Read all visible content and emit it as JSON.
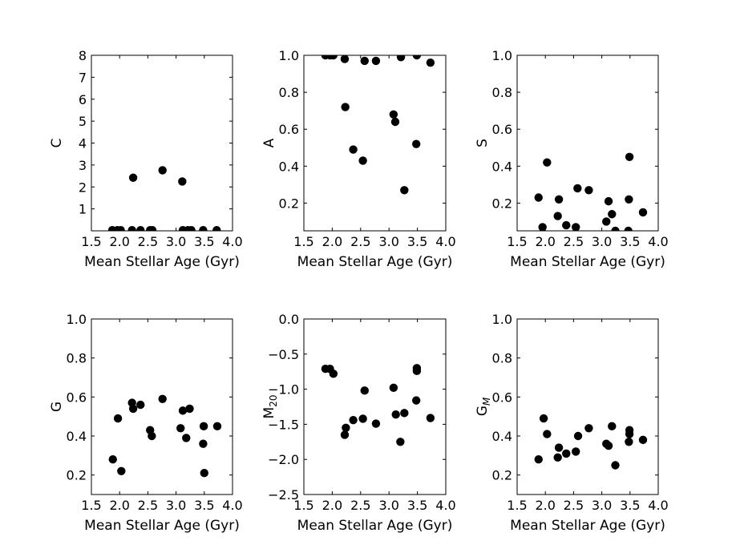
{
  "chart_data": [
    {
      "type": "scatter",
      "xlabel": "Mean Stellar Age (Gyr)",
      "ylabel": "C",
      "xlim": [
        1.5,
        4.0
      ],
      "ylim": [
        0,
        8
      ],
      "xticks": [
        1.5,
        2.0,
        2.5,
        3.0,
        3.5,
        4.0
      ],
      "xtick_labels": [
        "1.5",
        "2.0",
        "2.5",
        "3.0",
        "3.5",
        "4.0"
      ],
      "yticks": [
        1,
        2,
        3,
        4,
        5,
        6,
        7,
        8
      ],
      "ytick_labels": [
        "1",
        "2",
        "3",
        "4",
        "5",
        "6",
        "7",
        "8"
      ],
      "points": [
        [
          1.87,
          0.03
        ],
        [
          1.96,
          0.03
        ],
        [
          2.02,
          0.03
        ],
        [
          2.22,
          0.03
        ],
        [
          2.37,
          0.03
        ],
        [
          2.54,
          0.03
        ],
        [
          2.58,
          0.03
        ],
        [
          2.24,
          2.42
        ],
        [
          2.76,
          2.76
        ],
        [
          3.11,
          2.25
        ],
        [
          3.12,
          0.03
        ],
        [
          3.21,
          0.03
        ],
        [
          3.27,
          0.03
        ],
        [
          3.48,
          0.03
        ],
        [
          3.72,
          0.03
        ]
      ]
    },
    {
      "type": "scatter",
      "xlabel": "Mean Stellar Age (Gyr)",
      "ylabel": "A",
      "xlim": [
        1.5,
        4.0
      ],
      "ylim": [
        0.05,
        1.0
      ],
      "xticks": [
        1.5,
        2.0,
        2.5,
        3.0,
        3.5,
        4.0
      ],
      "xtick_labels": [
        "1.5",
        "2.0",
        "2.5",
        "3.0",
        "3.5",
        "4.0"
      ],
      "yticks": [
        0.2,
        0.4,
        0.6,
        0.8,
        1.0
      ],
      "ytick_labels": [
        "0.2",
        "0.4",
        "0.6",
        "0.8",
        "1.0"
      ],
      "points": [
        [
          1.88,
          1.0
        ],
        [
          1.96,
          1.0
        ],
        [
          2.02,
          1.0
        ],
        [
          2.22,
          0.98
        ],
        [
          2.23,
          0.72
        ],
        [
          2.37,
          0.49
        ],
        [
          2.54,
          0.43
        ],
        [
          2.57,
          0.97
        ],
        [
          2.77,
          0.97
        ],
        [
          3.08,
          0.68
        ],
        [
          3.11,
          0.64
        ],
        [
          3.21,
          0.99
        ],
        [
          3.27,
          0.27
        ],
        [
          3.48,
          0.52
        ],
        [
          3.49,
          1.0
        ],
        [
          3.73,
          0.96
        ]
      ]
    },
    {
      "type": "scatter",
      "xlabel": "Mean Stellar Age (Gyr)",
      "ylabel": "S",
      "xlim": [
        1.5,
        4.0
      ],
      "ylim": [
        0.05,
        1.0
      ],
      "xticks": [
        1.5,
        2.0,
        2.5,
        3.0,
        3.5,
        4.0
      ],
      "xtick_labels": [
        "1.5",
        "2.0",
        "2.5",
        "3.0",
        "3.5",
        "4.0"
      ],
      "yticks": [
        0.2,
        0.4,
        0.6,
        0.8,
        1.0
      ],
      "ytick_labels": [
        "0.2",
        "0.4",
        "0.6",
        "0.8",
        "1.0"
      ],
      "points": [
        [
          1.88,
          0.23
        ],
        [
          1.95,
          0.07
        ],
        [
          2.03,
          0.42
        ],
        [
          2.22,
          0.13
        ],
        [
          2.24,
          0.22
        ],
        [
          2.37,
          0.08
        ],
        [
          2.54,
          0.07
        ],
        [
          2.57,
          0.28
        ],
        [
          2.77,
          0.27
        ],
        [
          3.08,
          0.1
        ],
        [
          3.12,
          0.21
        ],
        [
          3.18,
          0.14
        ],
        [
          3.24,
          0.05
        ],
        [
          3.47,
          0.05
        ],
        [
          3.48,
          0.22
        ],
        [
          3.49,
          0.45
        ],
        [
          3.73,
          0.15
        ]
      ]
    },
    {
      "type": "scatter",
      "xlabel": "Mean Stellar Age (Gyr)",
      "ylabel": "G",
      "xlim": [
        1.5,
        4.0
      ],
      "ylim": [
        0.1,
        1.0
      ],
      "xticks": [
        1.5,
        2.0,
        2.5,
        3.0,
        3.5,
        4.0
      ],
      "xtick_labels": [
        "1.5",
        "2.0",
        "2.5",
        "3.0",
        "3.5",
        "4.0"
      ],
      "yticks": [
        0.2,
        0.4,
        0.6,
        0.8,
        1.0
      ],
      "ytick_labels": [
        "0.2",
        "0.4",
        "0.6",
        "0.8",
        "1.0"
      ],
      "points": [
        [
          1.88,
          0.28
        ],
        [
          1.97,
          0.49
        ],
        [
          2.03,
          0.22
        ],
        [
          2.22,
          0.57
        ],
        [
          2.24,
          0.54
        ],
        [
          2.37,
          0.56
        ],
        [
          2.54,
          0.43
        ],
        [
          2.57,
          0.4
        ],
        [
          2.76,
          0.59
        ],
        [
          3.08,
          0.44
        ],
        [
          3.12,
          0.53
        ],
        [
          3.18,
          0.39
        ],
        [
          3.24,
          0.54
        ],
        [
          3.48,
          0.36
        ],
        [
          3.49,
          0.45
        ],
        [
          3.5,
          0.21
        ],
        [
          3.73,
          0.45
        ]
      ]
    },
    {
      "type": "scatter",
      "xlabel": "Mean Stellar Age (Gyr)",
      "ylabel": "M",
      "ylabel_sub": "20",
      "xlim": [
        1.5,
        4.0
      ],
      "ylim": [
        -2.5,
        0.0
      ],
      "xticks": [
        1.5,
        2.0,
        2.5,
        3.0,
        3.5,
        4.0
      ],
      "xtick_labels": [
        "1.5",
        "2.0",
        "2.5",
        "3.0",
        "3.5",
        "4.0"
      ],
      "yticks": [
        -2.5,
        -2.0,
        -1.5,
        -1.0,
        -0.5,
        0.0
      ],
      "ytick_labels": [
        "−2.5",
        "−2.0",
        "−1.5",
        "−1.0",
        "−0.5",
        "0.0"
      ],
      "points": [
        [
          1.88,
          -0.71
        ],
        [
          1.96,
          -0.71
        ],
        [
          2.02,
          -0.78
        ],
        [
          2.22,
          -1.65
        ],
        [
          2.24,
          -1.55
        ],
        [
          2.37,
          -1.44
        ],
        [
          2.54,
          -1.42
        ],
        [
          2.57,
          -1.02
        ],
        [
          2.77,
          -1.49
        ],
        [
          3.08,
          -0.98
        ],
        [
          3.12,
          -1.36
        ],
        [
          3.2,
          -1.75
        ],
        [
          3.27,
          -1.34
        ],
        [
          3.48,
          -1.16
        ],
        [
          3.49,
          -0.7
        ],
        [
          3.49,
          -0.74
        ],
        [
          3.73,
          -1.41
        ]
      ]
    },
    {
      "type": "scatter",
      "xlabel": "Mean Stellar Age (Gyr)",
      "ylabel": "G",
      "ylabel_sub": "M",
      "xlim": [
        1.5,
        4.0
      ],
      "ylim": [
        0.1,
        1.0
      ],
      "xticks": [
        1.5,
        2.0,
        2.5,
        3.0,
        3.5,
        4.0
      ],
      "xtick_labels": [
        "1.5",
        "2.0",
        "2.5",
        "3.0",
        "3.5",
        "4.0"
      ],
      "yticks": [
        0.2,
        0.4,
        0.6,
        0.8,
        1.0
      ],
      "ytick_labels": [
        "0.2",
        "0.4",
        "0.6",
        "0.8",
        "1.0"
      ],
      "points": [
        [
          1.88,
          0.28
        ],
        [
          1.97,
          0.49
        ],
        [
          2.03,
          0.41
        ],
        [
          2.22,
          0.29
        ],
        [
          2.24,
          0.34
        ],
        [
          2.37,
          0.31
        ],
        [
          2.54,
          0.32
        ],
        [
          2.58,
          0.4
        ],
        [
          2.77,
          0.44
        ],
        [
          3.08,
          0.36
        ],
        [
          3.12,
          0.35
        ],
        [
          3.18,
          0.45
        ],
        [
          3.24,
          0.25
        ],
        [
          3.48,
          0.37
        ],
        [
          3.49,
          0.43
        ],
        [
          3.49,
          0.41
        ],
        [
          3.73,
          0.38
        ]
      ]
    }
  ],
  "colors": {
    "marker": "#000000",
    "axes": "#000000",
    "background": "#ffffff"
  }
}
